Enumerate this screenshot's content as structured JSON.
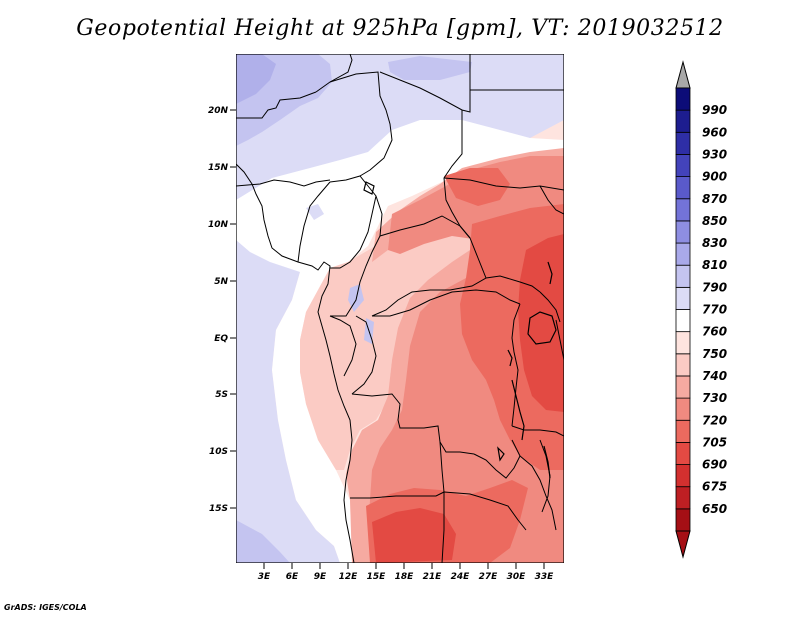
{
  "title": "Geopotential Height at 925hPa [gpm], VT: 2019032512",
  "credit": "GrADS: IGES/COLA",
  "chart_data": {
    "type": "map-filled-contour",
    "variable": "Geopotential Height",
    "level": "925hPa",
    "units": "gpm",
    "valid_time": "2019032512",
    "lon_ticks": [
      "3E",
      "6E",
      "9E",
      "12E",
      "15E",
      "18E",
      "21E",
      "24E",
      "27E",
      "30E",
      "33E"
    ],
    "lat_ticks": [
      "20N",
      "15N",
      "10N",
      "5N",
      "EQ",
      "5S",
      "10S",
      "15S"
    ],
    "colorbar": {
      "levels": [
        "650",
        "675",
        "690",
        "705",
        "720",
        "730",
        "740",
        "750",
        "760",
        "770",
        "790",
        "810",
        "830",
        "850",
        "870",
        "900",
        "930",
        "960",
        "990"
      ],
      "colors": [
        "#a50f15",
        "#be1f23",
        "#d3302f",
        "#e34a43",
        "#ec6a5f",
        "#f08a80",
        "#f6aaa1",
        "#fbcbc4",
        "#fee4df",
        "#ffffff",
        "#dcdcf6",
        "#c4c4f0",
        "#a9a9ea",
        "#8e8ee2",
        "#7373d8",
        "#5a5acb",
        "#4343bb",
        "#2e2ea6",
        "#1d1d8f",
        "#0c0c78"
      ],
      "extend": "both",
      "under_color": "#a50f15",
      "over_color": "#a8a8a8"
    }
  }
}
